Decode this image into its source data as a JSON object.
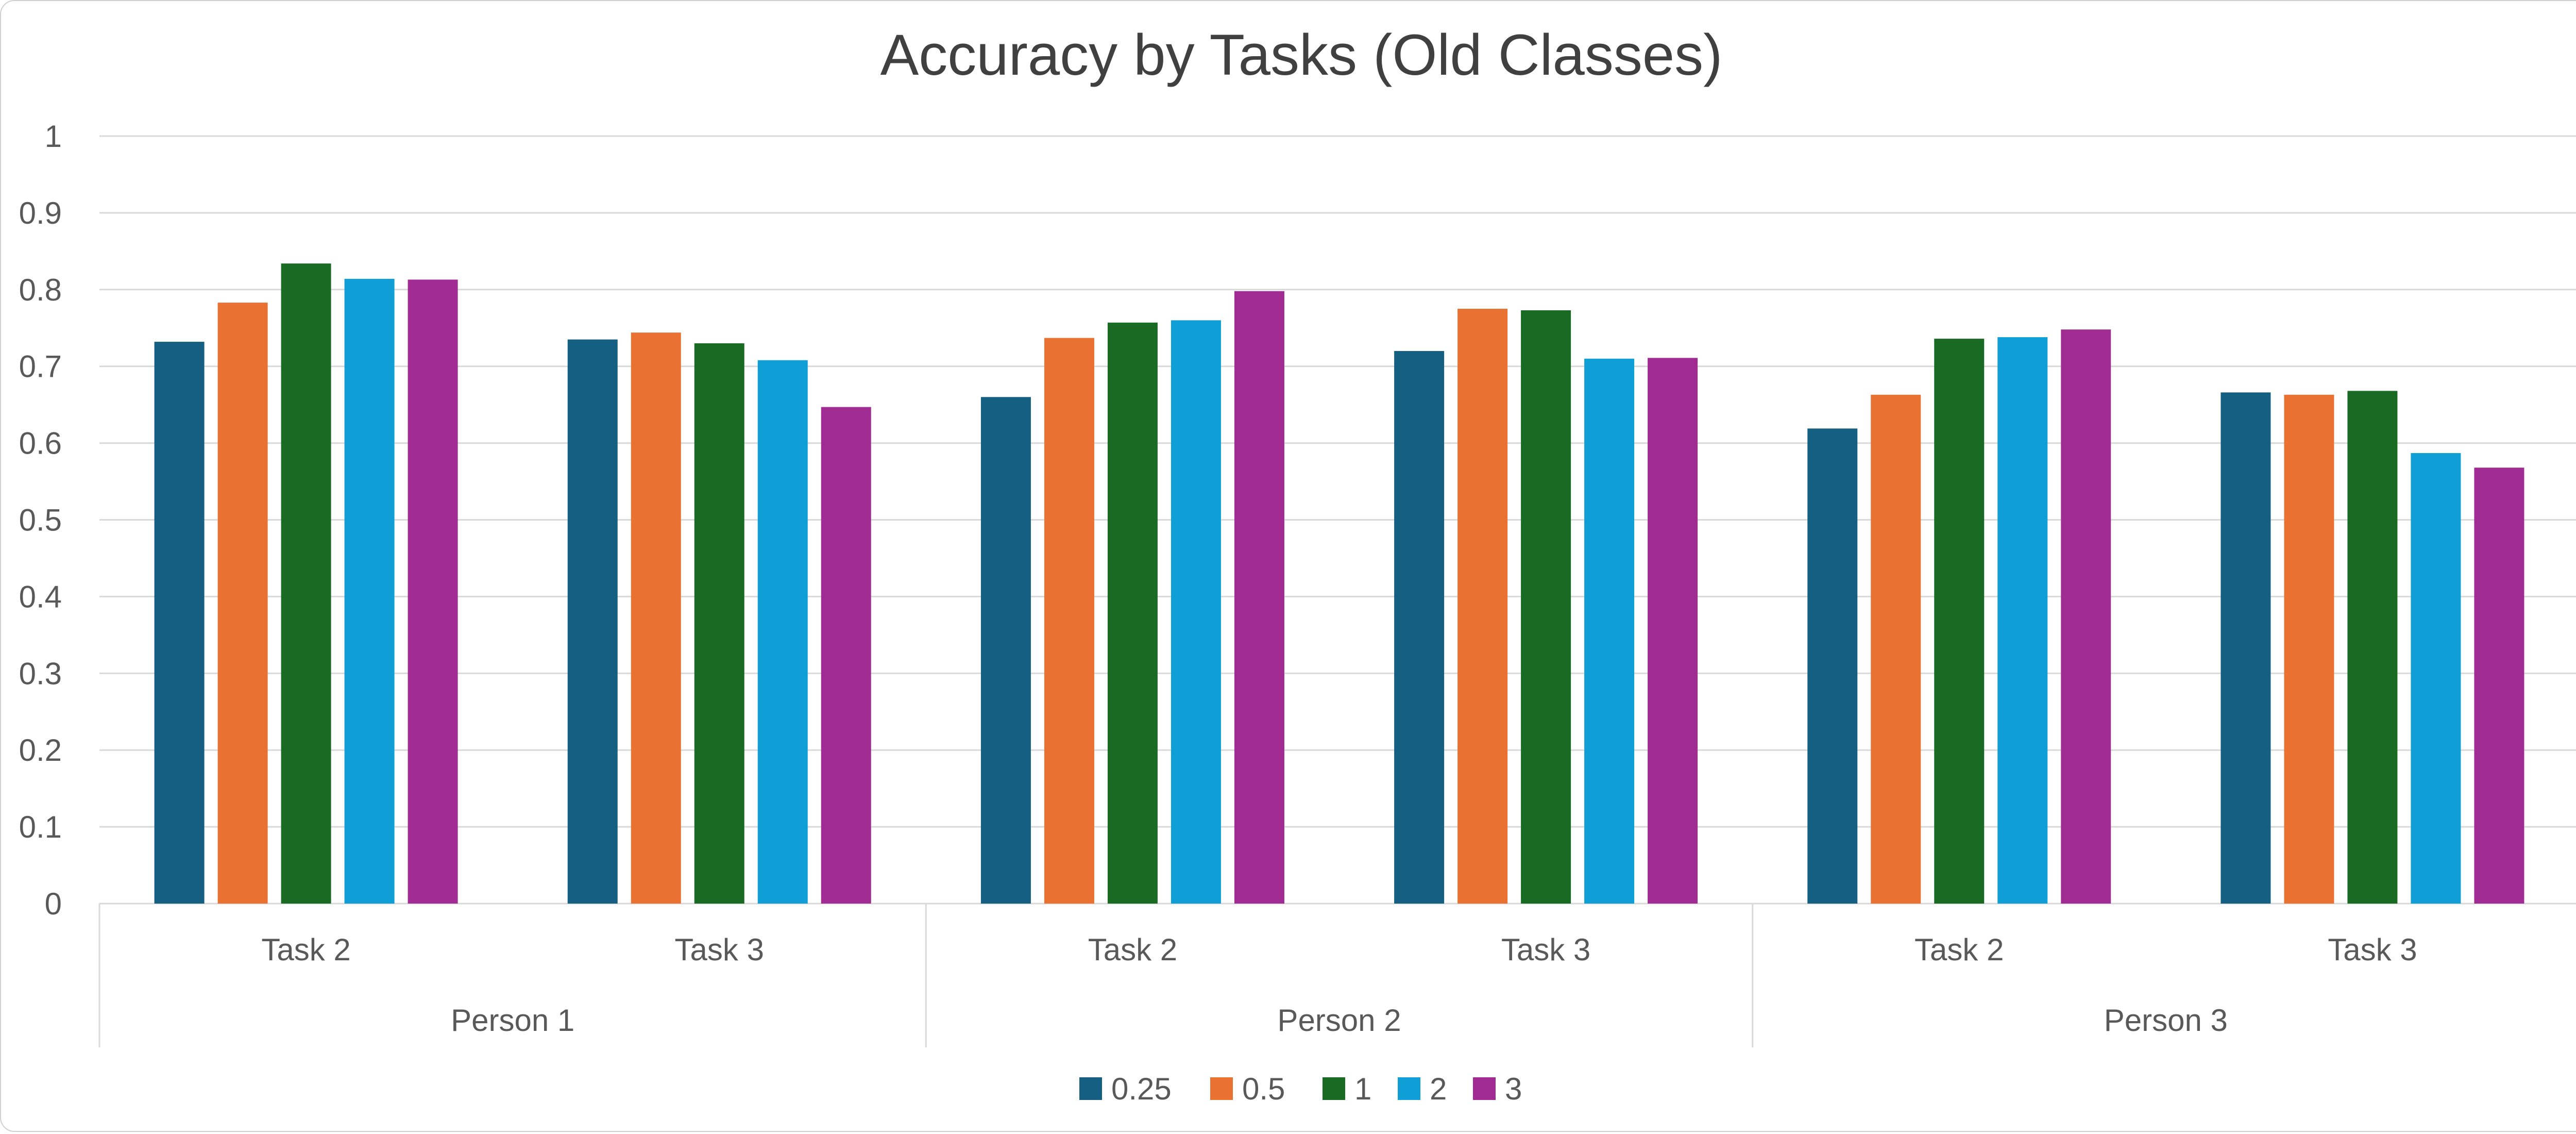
{
  "chart_data": {
    "type": "bar",
    "title": "Accuracy by Tasks (Old Classes)",
    "xlabel": "",
    "ylabel": "",
    "ylim": [
      0,
      1
    ],
    "yticks": [
      "0",
      "0.1",
      "0.2",
      "0.3",
      "0.4",
      "0.5",
      "0.6",
      "0.7",
      "0.8",
      "0.9",
      "1"
    ],
    "grid": true,
    "legend_position": "bottom",
    "categories": [
      "Task 2",
      "Task 3",
      "Task 2",
      "Task 3",
      "Task 2",
      "Task 3"
    ],
    "groups": [
      "Person 1",
      "Person 2",
      "Person 3"
    ],
    "series": [
      {
        "name": "0.25",
        "color": "#156082",
        "values": [
          0.732,
          0.735,
          0.66,
          0.72,
          0.619,
          0.666
        ]
      },
      {
        "name": "0.5",
        "color": "#E97132",
        "values": [
          0.783,
          0.744,
          0.737,
          0.775,
          0.663,
          0.663
        ]
      },
      {
        "name": "1",
        "color": "#196B24",
        "values": [
          0.834,
          0.73,
          0.757,
          0.773,
          0.736,
          0.668
        ]
      },
      {
        "name": "2",
        "color": "#0F9ED5",
        "values": [
          0.814,
          0.708,
          0.76,
          0.71,
          0.738,
          0.587
        ]
      },
      {
        "name": "3",
        "color": "#A02B93",
        "values": [
          0.813,
          0.647,
          0.798,
          0.711,
          0.748,
          0.568
        ]
      }
    ]
  }
}
